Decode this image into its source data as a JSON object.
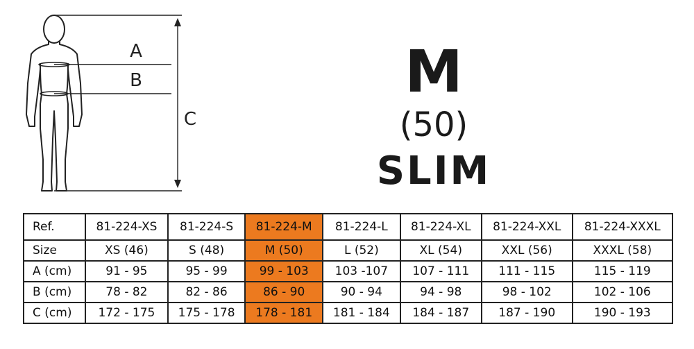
{
  "diagram": {
    "labels": {
      "a": "A",
      "b": "B",
      "c": "C"
    }
  },
  "headline": {
    "size": "M",
    "number": "(50)",
    "fit": "SLIM"
  },
  "colors": {
    "highlight": "#ec7a1f",
    "line": "#222222"
  },
  "table": {
    "highlight_col": 2,
    "rows": [
      {
        "label": "Ref.",
        "cells": [
          "81-224-XS",
          "81-224-S",
          "81-224-M",
          "81-224-L",
          "81-224-XL",
          "81-224-XXL",
          "81-224-XXXL"
        ]
      },
      {
        "label": "Size",
        "cells": [
          "XS (46)",
          "S (48)",
          "M (50)",
          "L (52)",
          "XL (54)",
          "XXL (56)",
          "XXXL (58)"
        ]
      },
      {
        "label": "A (cm)",
        "cells": [
          "91 - 95",
          "95 - 99",
          "99 - 103",
          "103 -107",
          "107 - 111",
          "111 - 115",
          "115  - 119"
        ]
      },
      {
        "label": "B (cm)",
        "cells": [
          "78 - 82",
          "82 - 86",
          "86 - 90",
          "90 - 94",
          "94 - 98",
          "98 - 102",
          "102 - 106"
        ]
      },
      {
        "label": "C (cm)",
        "cells": [
          "172 - 175",
          "175 - 178",
          "178 - 181",
          "181 - 184",
          "184 - 187",
          "187 - 190",
          "190 - 193"
        ]
      }
    ]
  }
}
